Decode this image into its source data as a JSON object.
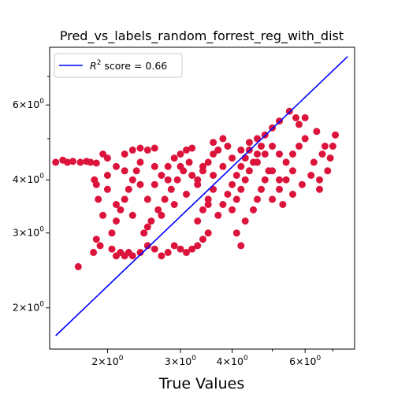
{
  "chart_data": {
    "type": "scatter",
    "title": "Pred_vs_labels_random_forrest_reg_with_dist",
    "xlabel": "True Values",
    "ylabel": "",
    "xscale": "log",
    "yscale": "log",
    "xlim": [
      1.45,
      7.9
    ],
    "ylim": [
      1.6,
      8.2
    ],
    "grid": false,
    "legend_position": "upper-left",
    "x_tick_labels": [
      {
        "value": 2,
        "base": "2",
        "exp": "0"
      },
      {
        "value": 3,
        "base": "3",
        "exp": "0"
      },
      {
        "value": 4,
        "base": "4",
        "exp": "0"
      },
      {
        "value": 6,
        "base": "6",
        "exp": "0"
      }
    ],
    "y_tick_labels": [
      {
        "value": 2,
        "base": "2",
        "exp": "0"
      },
      {
        "value": 3,
        "base": "3",
        "exp": "0"
      },
      {
        "value": 4,
        "base": "4",
        "exp": "0"
      },
      {
        "value": 6,
        "base": "6",
        "exp": "0"
      }
    ],
    "tick_mult_sign": "×",
    "tick_base_ten": "10",
    "series": [
      {
        "name": "",
        "kind": "scatter",
        "color": "#dc143c",
        "points": [
          [
            1.5,
            4.4
          ],
          [
            1.56,
            4.45
          ],
          [
            1.6,
            4.4
          ],
          [
            1.65,
            4.42
          ],
          [
            1.72,
            4.4
          ],
          [
            1.78,
            4.42
          ],
          [
            1.82,
            4.4
          ],
          [
            1.88,
            4.38
          ],
          [
            1.7,
            2.5
          ],
          [
            1.85,
            2.7
          ],
          [
            1.88,
            2.9
          ],
          [
            1.92,
            2.8
          ],
          [
            1.95,
            3.3
          ],
          [
            1.9,
            3.6
          ],
          [
            1.88,
            3.9
          ],
          [
            1.86,
            4.0
          ],
          [
            1.95,
            4.6
          ],
          [
            2.0,
            4.5
          ],
          [
            2.05,
            2.75
          ],
          [
            2.1,
            2.65
          ],
          [
            2.15,
            2.7
          ],
          [
            2.2,
            2.65
          ],
          [
            2.25,
            2.7
          ],
          [
            2.3,
            2.65
          ],
          [
            2.05,
            3.0
          ],
          [
            2.1,
            3.2
          ],
          [
            2.15,
            3.4
          ],
          [
            2.2,
            3.6
          ],
          [
            2.25,
            3.8
          ],
          [
            2.3,
            4.0
          ],
          [
            2.35,
            4.2
          ],
          [
            2.4,
            4.4
          ],
          [
            2.0,
            3.8
          ],
          [
            2.0,
            4.1
          ],
          [
            2.1,
            4.3
          ],
          [
            2.2,
            4.6
          ],
          [
            2.3,
            4.7
          ],
          [
            2.4,
            4.75
          ],
          [
            2.5,
            4.7
          ],
          [
            2.6,
            4.75
          ],
          [
            2.4,
            2.7
          ],
          [
            2.5,
            2.8
          ],
          [
            2.6,
            2.75
          ],
          [
            2.7,
            2.65
          ],
          [
            2.8,
            2.7
          ],
          [
            2.9,
            2.8
          ],
          [
            3.0,
            2.75
          ],
          [
            3.1,
            2.7
          ],
          [
            2.45,
            3.0
          ],
          [
            2.55,
            3.2
          ],
          [
            2.65,
            3.4
          ],
          [
            2.75,
            3.6
          ],
          [
            2.85,
            3.8
          ],
          [
            2.95,
            4.0
          ],
          [
            3.05,
            4.2
          ],
          [
            3.15,
            4.4
          ],
          [
            2.5,
            3.6
          ],
          [
            2.6,
            3.9
          ],
          [
            2.7,
            4.1
          ],
          [
            2.8,
            4.3
          ],
          [
            2.9,
            4.5
          ],
          [
            3.0,
            4.6
          ],
          [
            3.1,
            4.7
          ],
          [
            3.2,
            4.75
          ],
          [
            3.2,
            2.75
          ],
          [
            3.3,
            2.8
          ],
          [
            3.4,
            2.9
          ],
          [
            3.5,
            3.0
          ],
          [
            3.3,
            3.2
          ],
          [
            3.4,
            3.4
          ],
          [
            3.5,
            3.6
          ],
          [
            3.6,
            3.8
          ],
          [
            3.3,
            4.0
          ],
          [
            3.4,
            4.2
          ],
          [
            3.5,
            4.4
          ],
          [
            3.6,
            4.6
          ],
          [
            3.7,
            4.7
          ],
          [
            3.6,
            4.9
          ],
          [
            3.8,
            5.0
          ],
          [
            3.9,
            4.8
          ],
          [
            3.7,
            3.3
          ],
          [
            3.8,
            3.5
          ],
          [
            3.9,
            3.7
          ],
          [
            4.0,
            3.9
          ],
          [
            4.1,
            4.1
          ],
          [
            4.2,
            4.3
          ],
          [
            4.3,
            4.5
          ],
          [
            4.4,
            4.7
          ],
          [
            4.0,
            3.4
          ],
          [
            4.1,
            3.6
          ],
          [
            4.2,
            3.8
          ],
          [
            4.3,
            4.0
          ],
          [
            4.4,
            4.2
          ],
          [
            4.5,
            4.4
          ],
          [
            4.6,
            4.6
          ],
          [
            4.7,
            4.8
          ],
          [
            4.2,
            2.8
          ],
          [
            4.1,
            3.0
          ],
          [
            4.3,
            3.2
          ],
          [
            4.5,
            3.4
          ],
          [
            4.6,
            3.6
          ],
          [
            4.7,
            3.8
          ],
          [
            4.8,
            4.0
          ],
          [
            4.9,
            4.2
          ],
          [
            4.6,
            5.0
          ],
          [
            4.8,
            5.1
          ],
          [
            5.0,
            5.3
          ],
          [
            5.2,
            5.5
          ],
          [
            5.0,
            4.8
          ],
          [
            5.2,
            4.6
          ],
          [
            5.4,
            4.4
          ],
          [
            5.6,
            4.2
          ],
          [
            5.0,
            3.6
          ],
          [
            5.2,
            3.8
          ],
          [
            5.4,
            4.0
          ],
          [
            5.6,
            4.6
          ],
          [
            5.8,
            4.8
          ],
          [
            6.0,
            5.0
          ],
          [
            5.8,
            5.4
          ],
          [
            6.0,
            5.6
          ],
          [
            5.3,
            3.5
          ],
          [
            5.6,
            3.7
          ],
          [
            5.9,
            3.9
          ],
          [
            6.2,
            4.1
          ],
          [
            6.5,
            4.0
          ],
          [
            6.3,
            4.4
          ],
          [
            6.6,
            4.6
          ],
          [
            6.8,
            4.2
          ],
          [
            6.4,
            5.2
          ],
          [
            6.9,
            4.5
          ],
          [
            7.1,
            5.1
          ],
          [
            6.7,
            4.8
          ],
          [
            6.5,
            3.8
          ],
          [
            7.0,
            4.8
          ],
          [
            5.5,
            5.8
          ],
          [
            5.7,
            5.6
          ],
          [
            2.2,
            4.2
          ],
          [
            2.4,
            3.9
          ],
          [
            2.6,
            4.3
          ],
          [
            2.8,
            4.0
          ],
          [
            3.0,
            4.3
          ],
          [
            3.2,
            4.1
          ],
          [
            3.4,
            4.3
          ],
          [
            3.6,
            4.1
          ],
          [
            3.8,
            4.3
          ],
          [
            4.0,
            4.5
          ],
          [
            4.2,
            4.7
          ],
          [
            4.4,
            4.9
          ],
          [
            4.6,
            4.4
          ],
          [
            4.8,
            4.6
          ],
          [
            5.0,
            4.2
          ],
          [
            5.2,
            4.0
          ],
          [
            2.1,
            3.5
          ],
          [
            2.3,
            3.3
          ],
          [
            2.5,
            3.1
          ],
          [
            2.7,
            3.3
          ],
          [
            2.9,
            3.5
          ],
          [
            3.1,
            3.7
          ],
          [
            3.3,
            3.9
          ],
          [
            3.5,
            3.5
          ]
        ]
      },
      {
        "name": "R² score = 0.66",
        "kind": "line",
        "color": "#0000ff",
        "points": [
          [
            1.5,
            1.72
          ],
          [
            7.6,
            7.8
          ]
        ]
      }
    ],
    "legend": {
      "label_prefix": "R",
      "label_sup": "2",
      "label_suffix": " score = 0.66"
    }
  }
}
